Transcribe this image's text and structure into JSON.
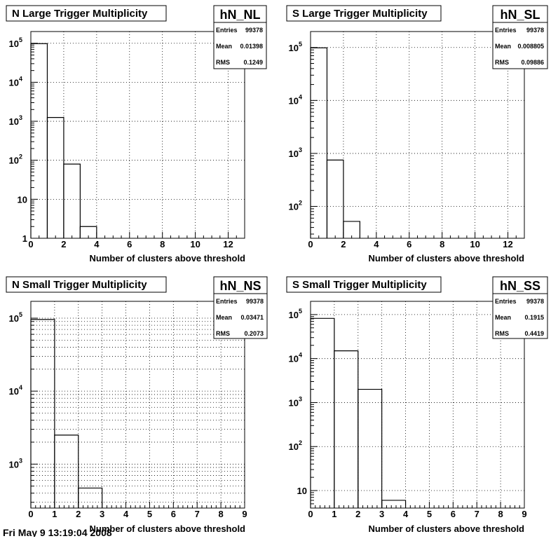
{
  "footer": {
    "text": "Fri May 9 13:19:04 2008"
  },
  "chart_data": [
    {
      "type": "bar",
      "title": "N Large Trigger Multiplicity",
      "hist_name": "hN_NL",
      "stats": [
        {
          "label": "Entries",
          "value": "99378"
        },
        {
          "label": "Mean",
          "value": "0.01398"
        },
        {
          "label": "RMS",
          "value": "0.1249"
        }
      ],
      "xlabel": "Number of clusters above threshold",
      "ylabel": "",
      "xlim": [
        0,
        13
      ],
      "ylim": [
        1,
        200000
      ],
      "yscale": "log",
      "grid": true,
      "x_tick_labels": [
        0,
        2,
        4,
        6,
        8,
        10,
        12
      ],
      "y_tick_labels": [
        {
          "value": 1,
          "base": "1",
          "exp": ""
        },
        {
          "value": 10,
          "base": "10",
          "exp": ""
        },
        {
          "value": 100,
          "base": "10",
          "exp": "2"
        },
        {
          "value": 1000,
          "base": "10",
          "exp": "3"
        },
        {
          "value": 10000,
          "base": "10",
          "exp": "4"
        },
        {
          "value": 100000,
          "base": "10",
          "exp": "5"
        }
      ],
      "bins": [
        {
          "x0": 0,
          "x1": 1,
          "value": 98000
        },
        {
          "x0": 1,
          "x1": 2,
          "value": 1250
        },
        {
          "x0": 2,
          "x1": 3,
          "value": 80
        },
        {
          "x0": 3,
          "x1": 4,
          "value": 2
        }
      ]
    },
    {
      "type": "bar",
      "title": "S Large Trigger Multiplicity",
      "hist_name": "hN_SL",
      "stats": [
        {
          "label": "Entries",
          "value": "99378"
        },
        {
          "label": "Mean",
          "value": "0.008805"
        },
        {
          "label": "RMS",
          "value": "0.09886"
        }
      ],
      "xlabel": "Number of clusters above threshold",
      "ylabel": "",
      "xlim": [
        0,
        13
      ],
      "ylim": [
        25,
        200000
      ],
      "yscale": "log",
      "grid": true,
      "x_tick_labels": [
        0,
        2,
        4,
        6,
        8,
        10,
        12
      ],
      "y_tick_labels": [
        {
          "value": 100,
          "base": "10",
          "exp": "2"
        },
        {
          "value": 1000,
          "base": "10",
          "exp": "3"
        },
        {
          "value": 10000,
          "base": "10",
          "exp": "4"
        },
        {
          "value": 100000,
          "base": "10",
          "exp": "5"
        }
      ],
      "bins": [
        {
          "x0": 0,
          "x1": 1,
          "value": 98500
        },
        {
          "x0": 1,
          "x1": 2,
          "value": 750
        },
        {
          "x0": 2,
          "x1": 3,
          "value": 52
        }
      ]
    },
    {
      "type": "bar",
      "title": "N Small Trigger Multiplicity",
      "hist_name": "hN_NS",
      "stats": [
        {
          "label": "Entries",
          "value": "99378"
        },
        {
          "label": "Mean",
          "value": "0.03471"
        },
        {
          "label": "RMS",
          "value": "0.2073"
        }
      ],
      "xlabel": "Number of clusters above threshold",
      "ylabel": "",
      "xlim": [
        0,
        9
      ],
      "ylim": [
        250,
        170000
      ],
      "yscale": "log",
      "grid": true,
      "minor_grid": true,
      "x_tick_labels": [
        0,
        1,
        2,
        3,
        4,
        5,
        6,
        7,
        8,
        9
      ],
      "y_tick_labels": [
        {
          "value": 1000,
          "base": "10",
          "exp": "3"
        },
        {
          "value": 10000,
          "base": "10",
          "exp": "4"
        },
        {
          "value": 100000,
          "base": "10",
          "exp": "5"
        }
      ],
      "bins": [
        {
          "x0": 0,
          "x1": 1,
          "value": 96000
        },
        {
          "x0": 1,
          "x1": 2,
          "value": 2500
        },
        {
          "x0": 2,
          "x1": 3,
          "value": 470
        }
      ]
    },
    {
      "type": "bar",
      "title": "S Small Trigger Multiplicity",
      "hist_name": "hN_SS",
      "stats": [
        {
          "label": "Entries",
          "value": "99378"
        },
        {
          "label": "Mean",
          "value": "0.1915"
        },
        {
          "label": "RMS",
          "value": "0.4419"
        }
      ],
      "xlabel": "Number of clusters above threshold",
      "ylabel": "",
      "xlim": [
        0,
        9
      ],
      "ylim": [
        4,
        200000
      ],
      "yscale": "log",
      "grid": true,
      "x_tick_labels": [
        0,
        1,
        2,
        3,
        4,
        5,
        6,
        7,
        8,
        9
      ],
      "y_tick_labels": [
        {
          "value": 10,
          "base": "10",
          "exp": ""
        },
        {
          "value": 100,
          "base": "10",
          "exp": "2"
        },
        {
          "value": 1000,
          "base": "10",
          "exp": "3"
        },
        {
          "value": 10000,
          "base": "10",
          "exp": "4"
        },
        {
          "value": 100000,
          "base": "10",
          "exp": "5"
        }
      ],
      "bins": [
        {
          "x0": 0,
          "x1": 1,
          "value": 82000
        },
        {
          "x0": 1,
          "x1": 2,
          "value": 15000
        },
        {
          "x0": 2,
          "x1": 3,
          "value": 2000
        },
        {
          "x0": 3,
          "x1": 4,
          "value": 6
        }
      ]
    }
  ]
}
